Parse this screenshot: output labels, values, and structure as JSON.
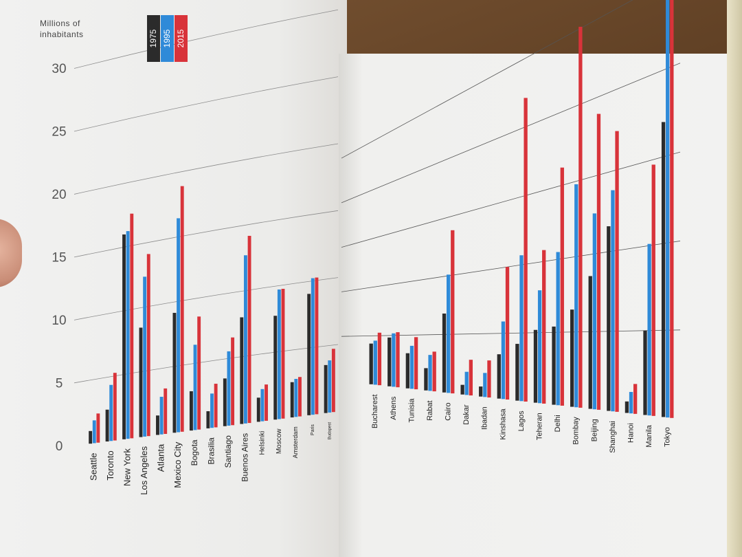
{
  "chart_data": {
    "type": "bar",
    "ylabel": "Millions of inhabitants",
    "ylim": [
      0,
      30
    ],
    "yticks": [
      0,
      5,
      10,
      15,
      20,
      25,
      30
    ],
    "grid": true,
    "legend_position": "top",
    "colors": [
      "#2b2b2b",
      "#2f8ad8",
      "#d8333a"
    ],
    "series": [
      {
        "name": "1975",
        "values": [
          1.0,
          2.5,
          16.0,
          8.5,
          1.5,
          9.2,
          3.0,
          1.3,
          3.6,
          8.0,
          1.8,
          7.7,
          2.6,
          8.9,
          3.5,
          4.2,
          4.8,
          3.3,
          2.0,
          6.8,
          0.8,
          0.8,
          3.4,
          4.2,
          5.2,
          5.4,
          6.5,
          8.6,
          11.6,
          0.7,
          5.0,
          17.0
        ]
      },
      {
        "name": "1995",
        "values": [
          1.8,
          4.4,
          16.2,
          12.4,
          2.9,
          16.4,
          6.5,
          2.6,
          5.6,
          12.6,
          2.4,
          9.6,
          2.8,
          10.0,
          3.8,
          4.5,
          5.2,
          4.0,
          3.2,
          10.1,
          1.9,
          1.9,
          5.9,
          10.7,
          8.0,
          10.5,
          14.8,
          12.6,
          13.8,
          1.3,
          10.1,
          25.0
        ]
      },
      {
        "name": "2015",
        "values": [
          2.3,
          5.3,
          17.5,
          14.1,
          3.5,
          18.8,
          8.6,
          3.3,
          6.6,
          14.0,
          2.7,
          9.6,
          2.9,
          10.0,
          4.6,
          5.3,
          5.3,
          4.8,
          3.5,
          13.8,
          2.9,
          2.9,
          10.0,
          22.1,
          10.8,
          16.2,
          25.1,
          18.9,
          17.4,
          1.8,
          14.7,
          27.6
        ]
      }
    ],
    "categories": [
      "Seattle",
      "Toronto",
      "New York",
      "Los Angeles",
      "Atlanta",
      "Mexico City",
      "Bogota",
      "Brasilia",
      "Santiago",
      "Buenos Aires",
      "Helsinki",
      "Moscow",
      "Amsterdam",
      "Paris",
      "Budapest",
      "Bucharest",
      "Athens",
      "Tunisia",
      "Rabat",
      "Cairo",
      "Dakar",
      "Ibadan",
      "Kinshasa",
      "Lagos",
      "Teheran",
      "Delhi",
      "Bombay",
      "Beijing",
      "Shanghai",
      "Hanoi",
      "Manila",
      "Tokyo"
    ]
  }
}
